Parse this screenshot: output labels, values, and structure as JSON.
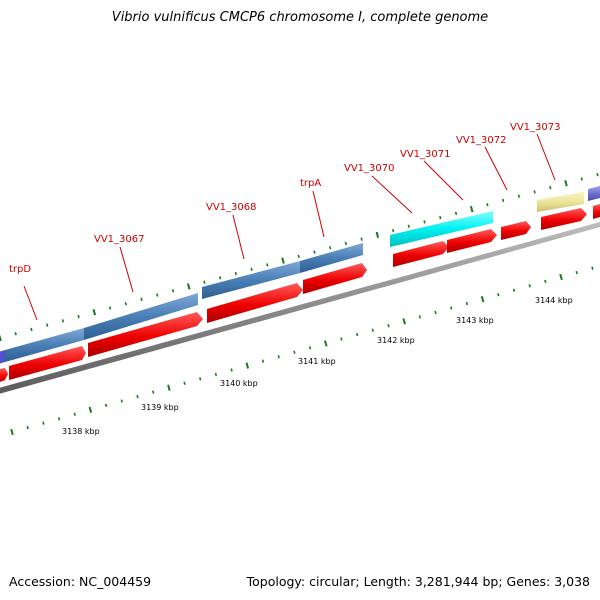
{
  "title": "Vibrio vulnificus CMCP6 chromosome I, complete genome",
  "footer": {
    "accession": "Accession: NC_004459",
    "summary": "Topology: circular; Length: 3,281,944 bp; Genes: 3,038"
  },
  "colors": {
    "gene_label": "#cc0000",
    "blue_gene": "#4a7fb5",
    "cyan_gene": "#00f0f0",
    "yellow_gene": "#ede599",
    "purple_gene": "#7070d0",
    "cds_arrow": "#ee0000",
    "backbone": "#999999",
    "tick": "#1a7a1a"
  },
  "gene_labels": [
    {
      "id": "trpD",
      "text": "trpD"
    },
    {
      "id": "vv1-3067",
      "text": "VV1_3067"
    },
    {
      "id": "vv1-3068",
      "text": "VV1_3068"
    },
    {
      "id": "trpA",
      "text": "trpA"
    },
    {
      "id": "vv1-3070",
      "text": "VV1_3070"
    },
    {
      "id": "vv1-3071",
      "text": "VV1_3071"
    },
    {
      "id": "vv1-3072",
      "text": "VV1_3072"
    },
    {
      "id": "vv1-3073",
      "text": "VV1_3073"
    }
  ],
  "kbp_labels": [
    "3138 kbp",
    "3139 kbp",
    "3140 kbp",
    "3141 kbp",
    "3142 kbp",
    "3143 kbp",
    "3144 kbp"
  ]
}
